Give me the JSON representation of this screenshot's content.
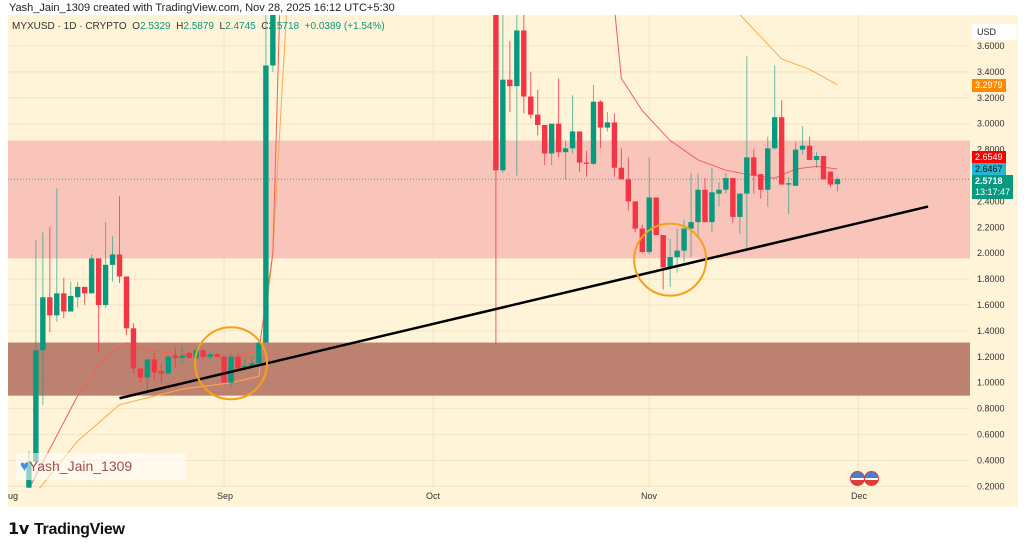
{
  "credit": "Yash_Jain_1309 created with TradingView.com, Nov 28, 2025 16:12 UTC+5:30",
  "legend": {
    "symbol": "MYXUSD · 1D · CRYPTO",
    "o_label": "O",
    "o": "2.5329",
    "h_label": "H",
    "h": "2.5879",
    "l_label": "L",
    "l": "2.4745",
    "c_label": "C",
    "c": "2.5718",
    "change": "+0.0389 (+1.54%)"
  },
  "currency": "USD",
  "price_labels": {
    "ma_long": "3.2979",
    "ma_short": "2.6549",
    "ma_short2": "2.6467",
    "last": "2.5718",
    "countdown": "13:17:47"
  },
  "watermark": "Yash_Jain_1309",
  "brand": "TradingView",
  "colors": {
    "up": "#089981",
    "down": "#f23645",
    "ma_short": "#f0605a",
    "ma_long": "#ffa94d",
    "zone_upper": "#f8c0b8",
    "zone_lower": "#b97a6a",
    "trendline": "#000000",
    "circle": "#f7a11a"
  },
  "chart_data": {
    "type": "candlestick",
    "title": "MYXUSD 1D",
    "x_unit": "days since Aug 1, 2025",
    "x_ticks": [
      {
        "label": "ug",
        "d": -1
      },
      {
        "label": "Sep",
        "d": 31
      },
      {
        "label": "Oct",
        "d": 61
      },
      {
        "label": "Nov",
        "d": 92
      },
      {
        "label": "Dec",
        "d": 122
      }
    ],
    "y_ticks": [
      "3.6000",
      "3.4000",
      "3.2000",
      "3.0000",
      "2.8000",
      "2.4000",
      "2.2000",
      "2.0000",
      "1.8000",
      "1.6000",
      "1.4000",
      "1.2000",
      "1.0000",
      "0.8000",
      "0.6000",
      "0.4000",
      "0.2000"
    ],
    "ylim": [
      0.18,
      3.85
    ],
    "candles_d_o_h_l_c": [
      [
        3,
        0.19,
        0.47,
        0.18,
        0.39
      ],
      [
        4,
        0.39,
        2.1,
        0.38,
        1.25
      ],
      [
        5,
        1.25,
        2.16,
        0.83,
        1.66
      ],
      [
        6,
        1.66,
        2.2,
        1.39,
        1.52
      ],
      [
        7,
        1.52,
        2.5,
        1.47,
        1.69
      ],
      [
        8,
        1.69,
        1.81,
        1.5,
        1.55
      ],
      [
        9,
        1.55,
        1.78,
        1.55,
        1.67
      ],
      [
        10,
        1.66,
        1.78,
        1.58,
        1.74
      ],
      [
        11,
        1.74,
        1.74,
        1.6,
        1.69
      ],
      [
        12,
        1.69,
        1.99,
        1.69,
        1.96
      ],
      [
        13,
        1.96,
        1.96,
        1.23,
        1.6
      ],
      [
        14,
        1.6,
        2.24,
        1.58,
        1.91
      ],
      [
        15,
        1.91,
        2.13,
        1.78,
        1.99
      ],
      [
        16,
        1.99,
        2.44,
        1.77,
        1.82
      ],
      [
        17,
        1.82,
        1.82,
        1.37,
        1.42
      ],
      [
        18,
        1.42,
        1.46,
        1.07,
        1.11
      ],
      [
        19,
        1.11,
        1.11,
        1.0,
        1.04
      ],
      [
        20,
        1.04,
        1.18,
        0.94,
        1.18
      ],
      [
        21,
        1.18,
        1.23,
        1.02,
        1.08
      ],
      [
        22,
        1.09,
        1.15,
        1.0,
        1.07
      ],
      [
        23,
        1.07,
        1.21,
        1.07,
        1.2
      ],
      [
        24,
        1.21,
        1.27,
        1.12,
        1.19
      ],
      [
        25,
        1.19,
        1.28,
        1.15,
        1.21
      ],
      [
        26,
        1.23,
        1.24,
        1.19,
        1.19
      ],
      [
        27,
        1.19,
        1.28,
        1.18,
        1.25
      ],
      [
        28,
        1.25,
        1.26,
        1.18,
        1.2
      ],
      [
        29,
        1.2,
        1.24,
        1.18,
        1.22
      ],
      [
        30,
        1.22,
        1.23,
        1.2,
        1.2
      ],
      [
        31,
        1.2,
        1.2,
        1.0,
        1.0
      ],
      [
        32,
        1.0,
        1.23,
        0.96,
        1.2
      ],
      [
        33,
        1.2,
        1.23,
        1.11,
        1.11
      ],
      [
        34,
        1.11,
        1.19,
        1.09,
        1.13
      ],
      [
        35,
        1.13,
        1.2,
        1.12,
        1.15
      ],
      [
        36,
        1.15,
        1.32,
        1.15,
        1.31
      ],
      [
        37,
        1.31,
        4.2,
        1.31,
        3.45
      ],
      [
        38,
        3.45,
        4.5,
        3.4,
        4.0
      ],
      [
        70,
        3.9,
        4.5,
        1.29,
        2.64
      ],
      [
        71,
        2.64,
        3.9,
        2.62,
        3.34
      ],
      [
        72,
        3.34,
        3.64,
        3.09,
        3.29
      ],
      [
        73,
        3.29,
        3.9,
        2.6,
        3.72
      ],
      [
        74,
        3.72,
        3.9,
        3.08,
        3.21
      ],
      [
        75,
        3.21,
        3.4,
        3.04,
        3.07
      ],
      [
        76,
        3.07,
        3.26,
        2.91,
        2.99
      ],
      [
        77,
        2.99,
        2.99,
        2.68,
        2.77
      ],
      [
        78,
        2.77,
        3.0,
        2.68,
        3.0
      ],
      [
        79,
        3.0,
        3.35,
        2.74,
        2.78
      ],
      [
        80,
        2.78,
        2.87,
        2.57,
        2.81
      ],
      [
        81,
        2.81,
        3.22,
        2.77,
        2.94
      ],
      [
        82,
        2.94,
        2.94,
        2.63,
        2.7
      ],
      [
        83,
        2.7,
        2.79,
        2.59,
        2.69
      ],
      [
        84,
        2.69,
        3.3,
        2.68,
        3.17
      ],
      [
        85,
        3.17,
        3.18,
        2.81,
        2.97
      ],
      [
        86,
        2.97,
        3.09,
        2.94,
        3.01
      ],
      [
        87,
        3.01,
        3.08,
        2.59,
        2.66
      ],
      [
        88,
        2.66,
        2.81,
        2.57,
        2.57
      ],
      [
        89,
        2.57,
        2.74,
        2.33,
        2.4
      ],
      [
        90,
        2.4,
        2.4,
        2.16,
        2.19
      ],
      [
        91,
        2.19,
        2.22,
        2.0,
        2.01
      ],
      [
        92,
        2.01,
        2.74,
        1.99,
        2.43
      ],
      [
        93,
        2.43,
        2.43,
        2.14,
        2.14
      ],
      [
        94,
        2.14,
        2.14,
        1.72,
        1.89
      ],
      [
        95,
        1.89,
        2.11,
        1.74,
        1.97
      ],
      [
        96,
        1.97,
        2.19,
        1.85,
        2.02
      ],
      [
        97,
        2.02,
        2.26,
        1.93,
        2.19
      ],
      [
        98,
        2.19,
        2.62,
        1.97,
        2.24
      ],
      [
        99,
        2.24,
        2.62,
        2.11,
        2.49
      ],
      [
        100,
        2.49,
        2.58,
        2.24,
        2.24
      ],
      [
        101,
        2.24,
        2.66,
        2.16,
        2.47
      ],
      [
        102,
        2.46,
        2.55,
        2.36,
        2.49
      ],
      [
        103,
        2.49,
        2.62,
        2.46,
        2.58
      ],
      [
        104,
        2.58,
        2.58,
        2.23,
        2.28
      ],
      [
        105,
        2.28,
        2.46,
        2.15,
        2.46
      ],
      [
        106,
        2.46,
        3.52,
        2.02,
        2.74
      ],
      [
        107,
        2.74,
        2.8,
        2.46,
        2.6
      ],
      [
        108,
        2.61,
        2.61,
        2.42,
        2.49
      ],
      [
        109,
        2.49,
        2.9,
        2.36,
        2.81
      ],
      [
        110,
        2.81,
        3.45,
        2.8,
        3.05
      ],
      [
        111,
        3.05,
        3.18,
        2.53,
        2.53
      ],
      [
        112,
        2.53,
        2.59,
        2.3,
        2.54
      ],
      [
        113,
        2.52,
        2.86,
        2.52,
        2.8
      ],
      [
        114,
        2.8,
        2.98,
        2.76,
        2.83
      ],
      [
        115,
        2.83,
        2.9,
        2.72,
        2.72
      ],
      [
        116,
        2.72,
        2.78,
        2.66,
        2.75
      ],
      [
        117,
        2.75,
        2.75,
        2.57,
        2.57
      ],
      [
        118,
        2.63,
        2.63,
        2.51,
        2.53
      ],
      [
        119,
        2.5329,
        2.5879,
        2.4745,
        2.5718
      ]
    ],
    "ma_short": [
      [
        3,
        0.18
      ],
      [
        10,
        0.9
      ],
      [
        14,
        1.2
      ],
      [
        17,
        1.31
      ],
      [
        20,
        1.25
      ],
      [
        25,
        1.22
      ],
      [
        33,
        1.21
      ],
      [
        36,
        1.25
      ],
      [
        38,
        2.0
      ],
      [
        39,
        3.9
      ],
      [
        87,
        3.9
      ],
      [
        88,
        3.35
      ],
      [
        91,
        3.1
      ],
      [
        95,
        2.87
      ],
      [
        99,
        2.72
      ],
      [
        103,
        2.64
      ],
      [
        107,
        2.6
      ],
      [
        110,
        2.58
      ],
      [
        113,
        2.65
      ],
      [
        116,
        2.67
      ],
      [
        119,
        2.65
      ]
    ],
    "ma_long": [
      [
        4,
        0.15
      ],
      [
        10,
        0.55
      ],
      [
        16,
        0.83
      ],
      [
        25,
        0.95
      ],
      [
        32,
        1.0
      ],
      [
        36,
        1.05
      ],
      [
        38,
        2.0
      ],
      [
        40,
        3.9
      ],
      [
        104,
        3.9
      ],
      [
        111,
        3.5
      ],
      [
        115,
        3.42
      ],
      [
        119,
        3.3
      ]
    ],
    "zones": [
      {
        "name": "resistance",
        "from": 1.96,
        "to": 2.87
      },
      {
        "name": "support",
        "from": 0.9,
        "to": 1.31
      }
    ],
    "trendline": [
      [
        16,
        0.88
      ],
      [
        132,
        2.36
      ]
    ],
    "circles": [
      {
        "d": 32,
        "p": 1.15
      },
      {
        "d": 95,
        "p": 1.95
      }
    ]
  }
}
